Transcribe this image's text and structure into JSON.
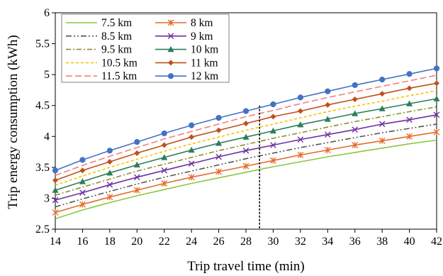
{
  "chart_data": {
    "type": "line",
    "xlabel": "Trip travel time (min)",
    "ylabel": "Trip energy consumption  (kWh)",
    "xlim": [
      14,
      42
    ],
    "ylim": [
      2.5,
      6
    ],
    "x_ticks": [
      "14",
      "16",
      "18",
      "20",
      "22",
      "24",
      "26",
      "28",
      "30",
      "32",
      "34",
      "36",
      "38",
      "40",
      "42"
    ],
    "y_ticks": [
      "2.5",
      "3",
      "3.5",
      "4",
      "4.5",
      "5",
      "5.5",
      "6"
    ],
    "grid": false,
    "legend_position": "top-left",
    "x": [
      14,
      16,
      18,
      20,
      22,
      24,
      26,
      28,
      30,
      32,
      34,
      36,
      38,
      40,
      42
    ],
    "reference_line_x": 29,
    "series": [
      {
        "name": "7.5 km",
        "color": "#8dc63f",
        "marker": "none",
        "dash": "solid",
        "values": [
          2.67,
          2.81,
          2.93,
          3.04,
          3.14,
          3.24,
          3.33,
          3.42,
          3.51,
          3.59,
          3.67,
          3.74,
          3.81,
          3.88,
          3.94
        ]
      },
      {
        "name": "8 km",
        "color": "#e36c2b",
        "marker": "asterisk",
        "dash": "solid",
        "values": [
          2.77,
          2.9,
          3.02,
          3.13,
          3.24,
          3.34,
          3.43,
          3.52,
          3.61,
          3.7,
          3.78,
          3.86,
          3.93,
          4.0,
          4.07
        ]
      },
      {
        "name": "8.5 km",
        "color": "#555555",
        "marker": "none",
        "dash": "dashdotdot",
        "values": [
          2.86,
          2.99,
          3.11,
          3.23,
          3.34,
          3.44,
          3.54,
          3.64,
          3.73,
          3.82,
          3.9,
          3.98,
          4.06,
          4.13,
          4.2
        ]
      },
      {
        "name": "9 km",
        "color": "#7030a0",
        "marker": "x",
        "dash": "solid",
        "values": [
          2.97,
          3.09,
          3.22,
          3.34,
          3.45,
          3.56,
          3.67,
          3.77,
          3.86,
          3.95,
          4.03,
          4.11,
          4.2,
          4.27,
          4.35
        ]
      },
      {
        "name": "9.5 km",
        "color": "#8b8f2a",
        "marker": "none",
        "dash": "dashdot",
        "values": [
          3.05,
          3.18,
          3.31,
          3.44,
          3.55,
          3.66,
          3.77,
          3.87,
          3.97,
          4.06,
          4.15,
          4.24,
          4.32,
          4.4,
          4.48
        ]
      },
      {
        "name": "10 km",
        "color": "#2e7d5b",
        "marker": "triangle",
        "dash": "solid",
        "values": [
          3.13,
          3.27,
          3.41,
          3.54,
          3.66,
          3.78,
          3.89,
          3.99,
          4.09,
          4.19,
          4.28,
          4.37,
          4.45,
          4.53,
          4.61
        ]
      },
      {
        "name": "10.5 km",
        "color": "#ffc000",
        "marker": "none",
        "dash": "dashed",
        "values": [
          3.21,
          3.36,
          3.5,
          3.63,
          3.76,
          3.88,
          3.99,
          4.1,
          4.2,
          4.3,
          4.4,
          4.49,
          4.57,
          4.66,
          4.74
        ]
      },
      {
        "name": "11 km",
        "color": "#c0501a",
        "marker": "diamond",
        "dash": "solid",
        "values": [
          3.29,
          3.45,
          3.59,
          3.73,
          3.86,
          3.99,
          4.1,
          4.21,
          4.32,
          4.41,
          4.51,
          4.6,
          4.69,
          4.78,
          4.86
        ]
      },
      {
        "name": "11.5 km",
        "color": "#f08080",
        "marker": "none",
        "dash": "longdash",
        "values": [
          3.37,
          3.53,
          3.68,
          3.82,
          3.96,
          4.08,
          4.2,
          4.32,
          4.42,
          4.53,
          4.63,
          4.72,
          4.81,
          4.9,
          4.99
        ]
      },
      {
        "name": "12 km",
        "color": "#4472c4",
        "marker": "circle",
        "dash": "solid",
        "values": [
          3.45,
          3.62,
          3.77,
          3.91,
          4.05,
          4.18,
          4.3,
          4.41,
          4.52,
          4.63,
          4.73,
          4.83,
          4.92,
          5.01,
          5.1
        ]
      }
    ]
  }
}
